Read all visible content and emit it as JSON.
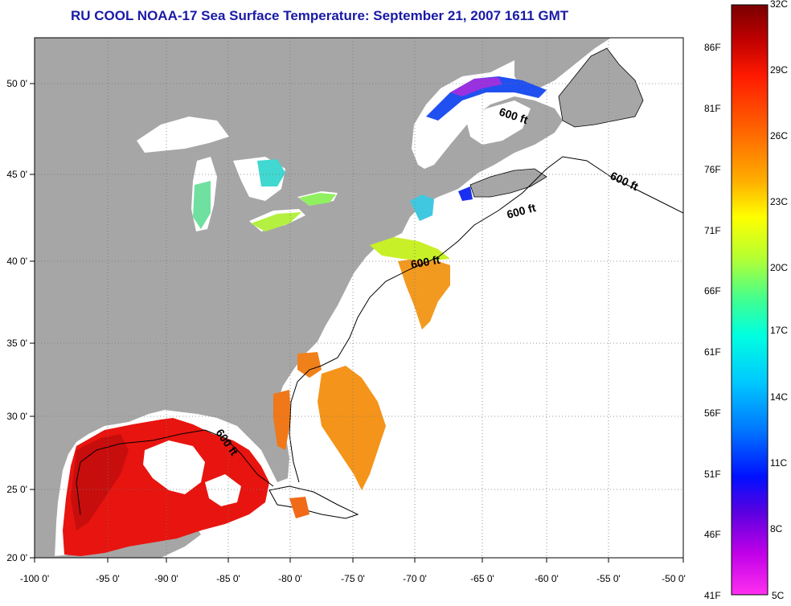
{
  "title": "RU COOL  NOAA-17  Sea Surface Temperature:  September 21, 2007 1611 GMT",
  "map": {
    "lon_labels": [
      "-100 0'",
      "-95 0'",
      "-90 0'",
      "-85 0'",
      "-80 0'",
      "-75 0'",
      "-70 0'",
      "-65 0'",
      "-60 0'",
      "-55 0'",
      "-50 0'"
    ],
    "lat_labels": [
      "50 0'",
      "45 0'",
      "40 0'",
      "35 0'",
      "30 0'",
      "25 0'",
      "20 0'"
    ],
    "contour_labels": [
      "600 ft",
      "600 ft",
      "600 ft",
      "600 ft",
      "600 ft"
    ],
    "colors": {
      "land": "#a6a6a6",
      "ocean_nodata": "#ffffff",
      "grid": "#555555"
    }
  },
  "colorbar": {
    "celsius_labels": [
      "32C",
      "29C",
      "26C",
      "23C",
      "20C",
      "17C",
      "14C",
      "11C",
      "8C",
      "5C"
    ],
    "fahrenheit_labels": [
      "86F",
      "81F",
      "76F",
      "71F",
      "66F",
      "61F",
      "56F",
      "51F",
      "46F",
      "41F"
    ]
  }
}
